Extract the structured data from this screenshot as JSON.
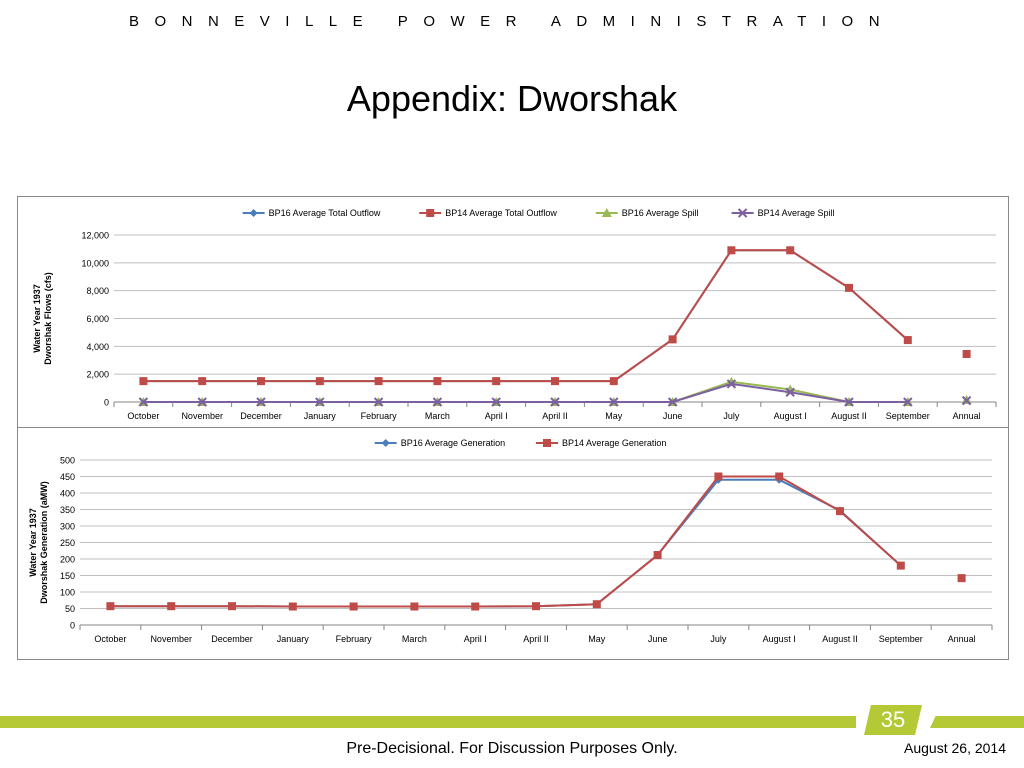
{
  "header": {
    "org": "BONNEVILLE POWER ADMINISTRATION"
  },
  "slide": {
    "title": "Appendix:  Dworshak",
    "footer": "Pre-Decisional.  For Discussion Purposes Only.",
    "date": "August 26, 2014",
    "page_number": "35"
  },
  "colors": {
    "accent_band": "#b5c937"
  },
  "chart_data": [
    {
      "type": "line",
      "title": "",
      "ylabel": "Water Year 1937\nDworshak Flows (cfs)",
      "xlabel": "",
      "categories": [
        "October",
        "November",
        "December",
        "January",
        "February",
        "March",
        "April I",
        "April II",
        "May",
        "June",
        "July",
        "August I",
        "August II",
        "September",
        "Annual"
      ],
      "ylim": [
        0,
        12000
      ],
      "yticks": [
        0,
        2000,
        4000,
        6000,
        8000,
        10000,
        12000
      ],
      "ytick_labels": [
        "0",
        "2,000",
        "4,000",
        "6,000",
        "8,000",
        "10,000",
        "12,000"
      ],
      "grid": true,
      "legend": "top",
      "standalone_last": true,
      "series": [
        {
          "name": "BP16 Average Total Outflow",
          "color": "#4a7ebb",
          "marker": "diamond",
          "values": [
            1500,
            1500,
            1500,
            1500,
            1500,
            1500,
            1500,
            1500,
            1500,
            4500,
            10900,
            10900,
            8200,
            4450,
            3450
          ]
        },
        {
          "name": "BP14 Average Total Outflow",
          "color": "#be4b48",
          "marker": "square",
          "values": [
            1500,
            1500,
            1500,
            1500,
            1500,
            1500,
            1500,
            1500,
            1500,
            4500,
            10900,
            10900,
            8200,
            4450,
            3450
          ]
        },
        {
          "name": "BP16 Average Spill",
          "color": "#98b954",
          "marker": "triangle",
          "values": [
            0,
            0,
            0,
            0,
            0,
            0,
            0,
            0,
            0,
            0,
            1450,
            900,
            0,
            0,
            150
          ]
        },
        {
          "name": "BP14 Average Spill",
          "color": "#7d60a0",
          "marker": "x",
          "values": [
            0,
            0,
            0,
            0,
            0,
            0,
            0,
            0,
            0,
            0,
            1300,
            700,
            0,
            0,
            100
          ]
        }
      ]
    },
    {
      "type": "line",
      "title": "",
      "ylabel": "Water Year 1937\nDworshak Generation (aMW)",
      "xlabel": "",
      "categories": [
        "October",
        "November",
        "December",
        "January",
        "February",
        "March",
        "April I",
        "April II",
        "May",
        "June",
        "July",
        "August I",
        "August II",
        "September",
        "Annual"
      ],
      "ylim": [
        0,
        500
      ],
      "yticks": [
        0,
        50,
        100,
        150,
        200,
        250,
        300,
        350,
        400,
        450,
        500
      ],
      "ytick_labels": [
        "0",
        "50",
        "100",
        "150",
        "200",
        "250",
        "300",
        "350",
        "400",
        "450",
        "500"
      ],
      "grid": true,
      "legend": "top",
      "standalone_last": true,
      "series": [
        {
          "name": "BP16 Average Generation",
          "color": "#4a7ebb",
          "marker": "diamond",
          "values": [
            57,
            57,
            57,
            56,
            56,
            56,
            56,
            57,
            63,
            212,
            440,
            440,
            347,
            180,
            142
          ]
        },
        {
          "name": "BP14 Average Generation",
          "color": "#be4b48",
          "marker": "square",
          "values": [
            57,
            57,
            57,
            56,
            56,
            56,
            56,
            57,
            63,
            212,
            450,
            450,
            345,
            180,
            142
          ]
        }
      ]
    }
  ]
}
